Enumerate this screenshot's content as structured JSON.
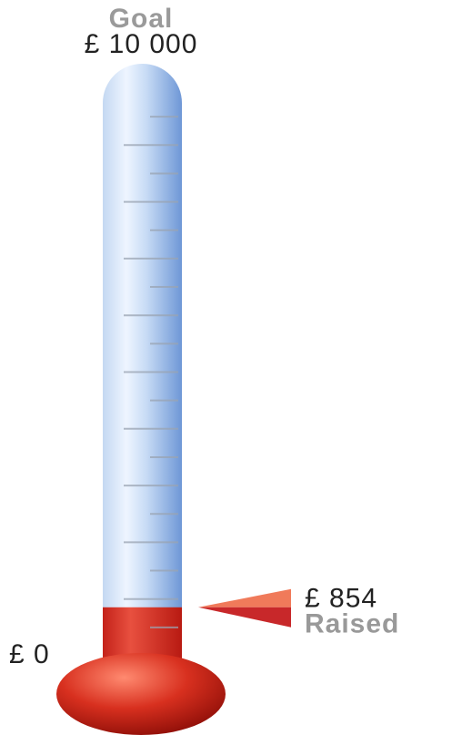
{
  "chart_data": {
    "type": "thermometer",
    "title": "Goal",
    "value_caption": "Raised",
    "values": [
      854
    ],
    "value_labels": [
      "£ 854"
    ],
    "ylim": [
      0,
      10000
    ],
    "yticks": [
      {
        "value": 0,
        "label": "£ 0"
      },
      {
        "value": 10000,
        "label": "£ 10 000"
      }
    ],
    "minor_yticks": [
      500,
      1000,
      1500,
      2000,
      2500,
      3000,
      3500,
      4000,
      4500,
      5000,
      5500,
      6000,
      6500,
      7000,
      7500,
      8000,
      8500,
      9000,
      9500
    ],
    "color": "#d8382c"
  }
}
